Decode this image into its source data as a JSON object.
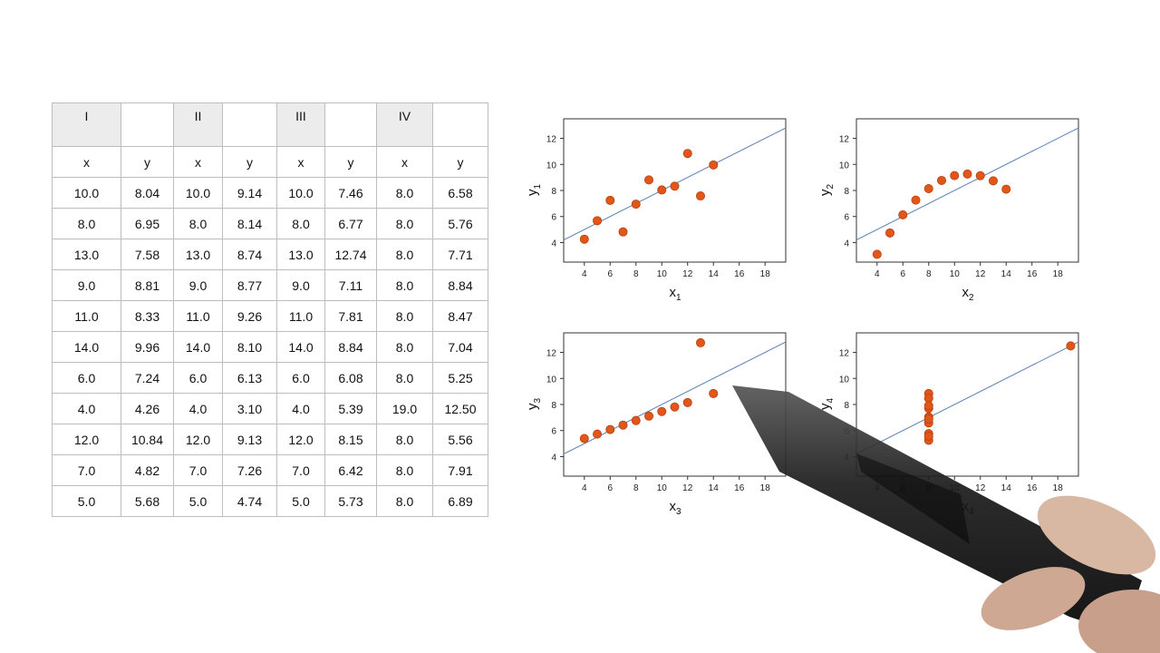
{
  "table": {
    "group_headers": [
      "I",
      "",
      "II",
      "",
      "III",
      "",
      "IV",
      ""
    ],
    "column_headers": [
      "x",
      "y",
      "x",
      "y",
      "x",
      "y",
      "x",
      "y"
    ],
    "rows": [
      [
        "10.0",
        "8.04",
        "10.0",
        "9.14",
        "10.0",
        "7.46",
        "8.0",
        "6.58"
      ],
      [
        "8.0",
        "6.95",
        "8.0",
        "8.14",
        "8.0",
        "6.77",
        "8.0",
        "5.76"
      ],
      [
        "13.0",
        "7.58",
        "13.0",
        "8.74",
        "13.0",
        "12.74",
        "8.0",
        "7.71"
      ],
      [
        "9.0",
        "8.81",
        "9.0",
        "8.77",
        "9.0",
        "7.11",
        "8.0",
        "8.84"
      ],
      [
        "11.0",
        "8.33",
        "11.0",
        "9.26",
        "11.0",
        "7.81",
        "8.0",
        "8.47"
      ],
      [
        "14.0",
        "9.96",
        "14.0",
        "8.10",
        "14.0",
        "8.84",
        "8.0",
        "7.04"
      ],
      [
        "6.0",
        "7.24",
        "6.0",
        "6.13",
        "6.0",
        "6.08",
        "8.0",
        "5.25"
      ],
      [
        "4.0",
        "4.26",
        "4.0",
        "3.10",
        "4.0",
        "5.39",
        "19.0",
        "12.50"
      ],
      [
        "12.0",
        "10.84",
        "12.0",
        "9.13",
        "12.0",
        "8.15",
        "8.0",
        "5.56"
      ],
      [
        "7.0",
        "4.82",
        "7.0",
        "7.26",
        "7.0",
        "6.42",
        "8.0",
        "7.91"
      ],
      [
        "5.0",
        "5.68",
        "5.0",
        "4.74",
        "5.0",
        "5.73",
        "8.0",
        "6.89"
      ]
    ]
  },
  "chart_data": [
    {
      "type": "scatter",
      "xlabel": "x",
      "xlabel_sub": "1",
      "ylabel": "y",
      "ylabel_sub": "1",
      "x": [
        10,
        8,
        13,
        9,
        11,
        14,
        6,
        4,
        12,
        7,
        5
      ],
      "y": [
        8.04,
        6.95,
        7.58,
        8.81,
        8.33,
        9.96,
        7.24,
        4.26,
        10.84,
        4.82,
        5.68
      ],
      "fit_line": {
        "intercept": 3,
        "slope": 0.5
      },
      "xlim": [
        2.4,
        19.6
      ],
      "ylim": [
        2.5,
        13.5
      ],
      "xticks": [
        "4",
        "6",
        "8",
        "10",
        "12",
        "14",
        "16",
        "18"
      ],
      "yticks": [
        "4",
        "6",
        "8",
        "10",
        "12"
      ],
      "grid": false
    },
    {
      "type": "scatter",
      "xlabel": "x",
      "xlabel_sub": "2",
      "ylabel": "y",
      "ylabel_sub": "2",
      "x": [
        10,
        8,
        13,
        9,
        11,
        14,
        6,
        4,
        12,
        7,
        5
      ],
      "y": [
        9.14,
        8.14,
        8.74,
        8.77,
        9.26,
        8.1,
        6.13,
        3.1,
        9.13,
        7.26,
        4.74
      ],
      "fit_line": {
        "intercept": 3,
        "slope": 0.5
      },
      "xlim": [
        2.4,
        19.6
      ],
      "ylim": [
        2.5,
        13.5
      ],
      "xticks": [
        "4",
        "6",
        "8",
        "10",
        "12",
        "14",
        "16",
        "18"
      ],
      "yticks": [
        "4",
        "6",
        "8",
        "10",
        "12"
      ],
      "grid": false
    },
    {
      "type": "scatter",
      "xlabel": "x",
      "xlabel_sub": "3",
      "ylabel": "y",
      "ylabel_sub": "3",
      "x": [
        10,
        8,
        13,
        9,
        11,
        14,
        6,
        4,
        12,
        7,
        5
      ],
      "y": [
        7.46,
        6.77,
        12.74,
        7.11,
        7.81,
        8.84,
        6.08,
        5.39,
        8.15,
        6.42,
        5.73
      ],
      "fit_line": {
        "intercept": 3,
        "slope": 0.5
      },
      "xlim": [
        2.4,
        19.6
      ],
      "ylim": [
        2.5,
        13.5
      ],
      "xticks": [
        "4",
        "6",
        "8",
        "10",
        "12",
        "14",
        "16",
        "18"
      ],
      "yticks": [
        "4",
        "6",
        "8",
        "10",
        "12"
      ],
      "grid": false
    },
    {
      "type": "scatter",
      "xlabel": "x",
      "xlabel_sub": "4",
      "ylabel": "y",
      "ylabel_sub": "4",
      "x": [
        8,
        8,
        8,
        8,
        8,
        8,
        8,
        19,
        8,
        8,
        8
      ],
      "y": [
        6.58,
        5.76,
        7.71,
        8.84,
        8.47,
        7.04,
        5.25,
        12.5,
        5.56,
        7.91,
        6.89
      ],
      "fit_line": {
        "intercept": 3,
        "slope": 0.5
      },
      "xlim": [
        2.4,
        19.6
      ],
      "ylim": [
        2.5,
        13.5
      ],
      "xticks": [
        "4",
        "6",
        "8",
        "10",
        "12",
        "14",
        "16",
        "18"
      ],
      "yticks": [
        "4",
        "6",
        "8",
        "10",
        "12"
      ],
      "grid": false
    }
  ],
  "colors": {
    "point": "#e2561a",
    "point_edge": "#b8400e",
    "fit_line": "#5a7fae",
    "axis": "#333333"
  }
}
